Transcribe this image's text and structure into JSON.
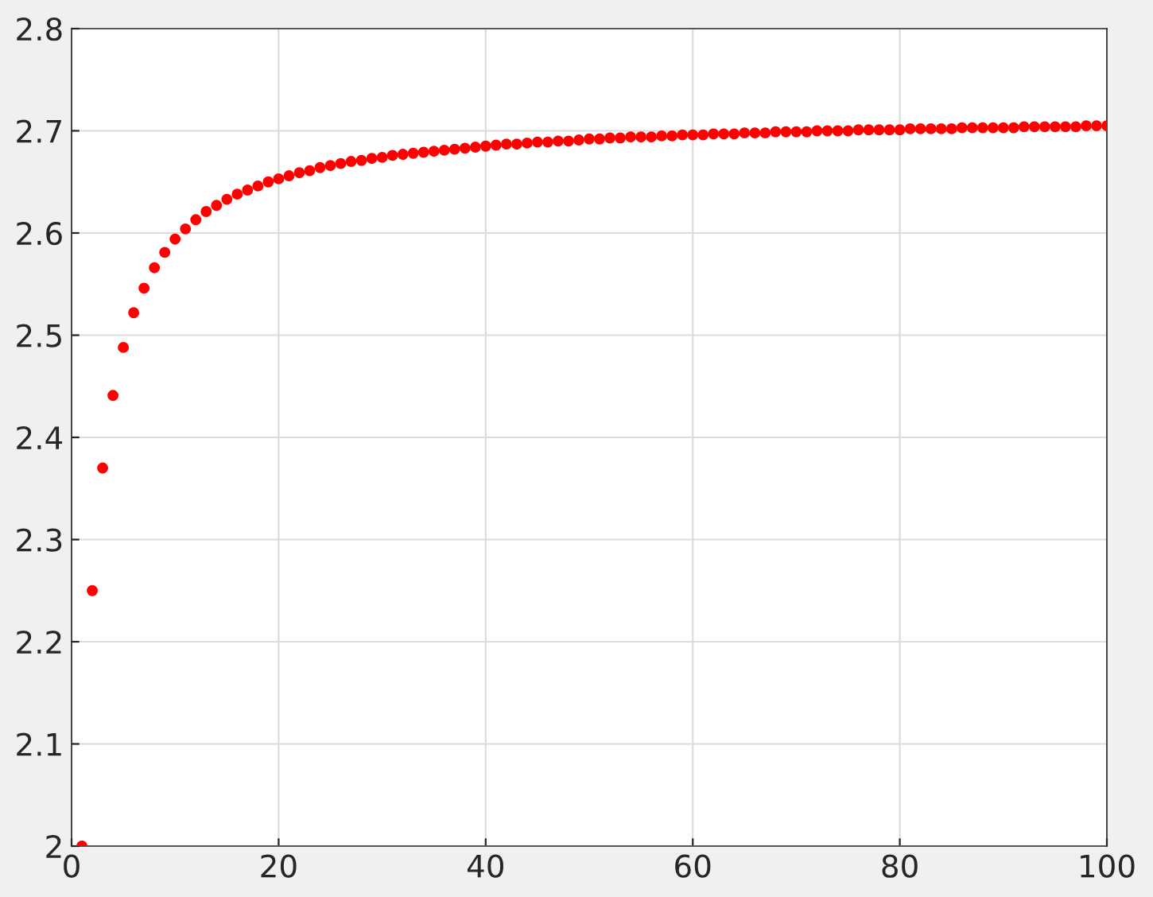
{
  "chart_data": {
    "type": "scatter",
    "x": [
      1,
      2,
      3,
      4,
      5,
      6,
      7,
      8,
      9,
      10,
      11,
      12,
      13,
      14,
      15,
      16,
      17,
      18,
      19,
      20,
      21,
      22,
      23,
      24,
      25,
      26,
      27,
      28,
      29,
      30,
      31,
      32,
      33,
      34,
      35,
      36,
      37,
      38,
      39,
      40,
      41,
      42,
      43,
      44,
      45,
      46,
      47,
      48,
      49,
      50,
      51,
      52,
      53,
      54,
      55,
      56,
      57,
      58,
      59,
      60,
      61,
      62,
      63,
      64,
      65,
      66,
      67,
      68,
      69,
      70,
      71,
      72,
      73,
      74,
      75,
      76,
      77,
      78,
      79,
      80,
      81,
      82,
      83,
      84,
      85,
      86,
      87,
      88,
      89,
      90,
      91,
      92,
      93,
      94,
      95,
      96,
      97,
      98,
      99,
      100
    ],
    "series": [
      {
        "color": "#ff0000",
        "values": [
          2.0,
          2.25,
          2.37,
          2.441,
          2.488,
          2.522,
          2.546,
          2.566,
          2.581,
          2.594,
          2.604,
          2.613,
          2.621,
          2.627,
          2.633,
          2.638,
          2.642,
          2.646,
          2.65,
          2.653,
          2.656,
          2.659,
          2.661,
          2.664,
          2.666,
          2.668,
          2.67,
          2.671,
          2.673,
          2.674,
          2.676,
          2.677,
          2.678,
          2.679,
          2.68,
          2.681,
          2.682,
          2.683,
          2.684,
          2.685,
          2.686,
          2.687,
          2.687,
          2.688,
          2.689,
          2.689,
          2.69,
          2.69,
          2.691,
          2.692,
          2.692,
          2.693,
          2.693,
          2.694,
          2.694,
          2.694,
          2.695,
          2.695,
          2.696,
          2.696,
          2.696,
          2.697,
          2.697,
          2.697,
          2.698,
          2.698,
          2.698,
          2.699,
          2.699,
          2.699,
          2.699,
          2.7,
          2.7,
          2.7,
          2.7,
          2.701,
          2.701,
          2.701,
          2.701,
          2.701,
          2.702,
          2.702,
          2.702,
          2.702,
          2.702,
          2.703,
          2.703,
          2.703,
          2.703,
          2.703,
          2.703,
          2.704,
          2.704,
          2.704,
          2.704,
          2.704,
          2.704,
          2.705,
          2.705,
          2.705
        ]
      }
    ],
    "xlim": [
      0,
      100
    ],
    "xticks": [
      0,
      20,
      40,
      60,
      80,
      100
    ],
    "ylim": [
      2,
      2.8
    ],
    "yticks": [
      {
        "value": 2,
        "label": "2"
      },
      2.1,
      2.2,
      2.3,
      2.4,
      2.5,
      2.6,
      2.7,
      2.8
    ],
    "grid": true,
    "marker": "circle",
    "legend": false
  }
}
